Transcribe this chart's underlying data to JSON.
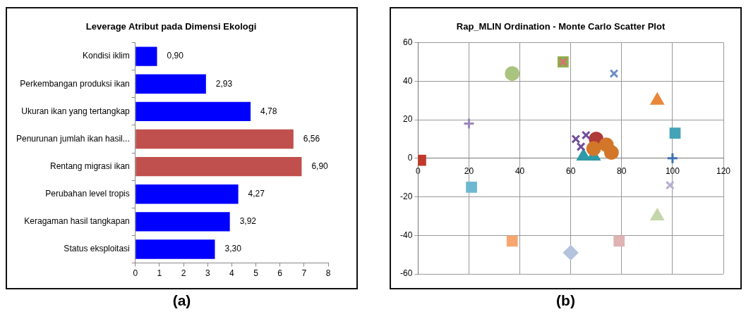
{
  "chart_data": [
    {
      "type": "bar",
      "title": "Leverage Atribut pada Dimensi Ekologi",
      "orientation": "horizontal",
      "categories": [
        "Kondisi iklim",
        "Perkembangan produksi ikan",
        "Ukuran ikan yang tertangkap",
        "Penurunan jumlah ikan hasil...",
        "Rentang migrasi ikan",
        "Perubahan level tropis",
        "Keragaman hasil tangkapan",
        "Status eksploitasi"
      ],
      "values": [
        0.9,
        2.93,
        4.78,
        6.56,
        6.9,
        4.27,
        3.92,
        3.3
      ],
      "colors": [
        "#0000ff",
        "#0000ff",
        "#0000ff",
        "#c0504d",
        "#c0504d",
        "#0000ff",
        "#0000ff",
        "#0000ff"
      ],
      "value_labels": [
        "0,90",
        "2,93",
        "4,78",
        "6,56",
        "6,90",
        "4,27",
        "3,92",
        "3,30"
      ],
      "xlim": [
        0,
        8
      ],
      "xticks": [
        0,
        1,
        2,
        3,
        4,
        5,
        6,
        7,
        8
      ],
      "grid": false,
      "legend": false,
      "annotations": [
        "(a)"
      ]
    },
    {
      "type": "scatter",
      "title": "Rap_MLIN Ordination - Monte Carlo Scatter Plot",
      "series": [
        {
          "color": "#c0392b",
          "marker": "square",
          "x": [
            1
          ],
          "values": [
            -1
          ]
        },
        {
          "color": "#9b87bd",
          "marker": "plus",
          "x": [
            20
          ],
          "values": [
            18
          ]
        },
        {
          "color": "#6fb8d1",
          "marker": "square",
          "x": [
            21
          ],
          "values": [
            -15
          ]
        },
        {
          "color": "#a9c47f",
          "marker": "circle",
          "x": [
            37
          ],
          "values": [
            44
          ]
        },
        {
          "color": "#f7a66f",
          "marker": "square",
          "x": [
            37
          ],
          "values": [
            -43
          ]
        },
        {
          "color": "#8cb04a",
          "marker": "square",
          "x": [
            57
          ],
          "values": [
            50
          ]
        },
        {
          "color": "#d47373",
          "marker": "cross",
          "x": [
            57
          ],
          "values": [
            50
          ]
        },
        {
          "color": "#b4c3de",
          "marker": "diamond",
          "x": [
            60
          ],
          "values": [
            -49
          ]
        },
        {
          "color": "#6f8fc8",
          "marker": "cross",
          "x": [
            77
          ],
          "values": [
            44
          ]
        },
        {
          "color": "#e8873a",
          "marker": "triangle",
          "x": [
            94
          ],
          "values": [
            30
          ]
        },
        {
          "color": "#45a3b8",
          "marker": "square",
          "x": [
            101
          ],
          "values": [
            13
          ]
        },
        {
          "color": "#3d6fb5",
          "marker": "plus",
          "x": [
            100
          ],
          "values": [
            0
          ]
        },
        {
          "color": "#b8add2",
          "marker": "cross",
          "x": [
            99
          ],
          "values": [
            -14
          ]
        },
        {
          "color": "#c6d6ac",
          "marker": "triangle",
          "x": [
            94
          ],
          "values": [
            -30
          ]
        },
        {
          "color": "#dfb3b3",
          "marker": "square",
          "x": [
            79
          ],
          "values": [
            -43
          ]
        },
        {
          "color": "#2f9aa8",
          "marker": "triangle",
          "x": [
            65,
            69
          ],
          "values": [
            1,
            1
          ]
        },
        {
          "color": "#b03a3a",
          "marker": "circle",
          "x": [
            70
          ],
          "values": [
            10
          ]
        },
        {
          "color": "#6f4e9a",
          "marker": "cross",
          "x": [
            62,
            66,
            64
          ],
          "values": [
            10,
            12,
            6
          ]
        },
        {
          "color": "#d2772a",
          "marker": "circle",
          "x": [
            69,
            74,
            76
          ],
          "values": [
            5,
            7,
            3
          ]
        }
      ],
      "xlim": [
        0,
        120
      ],
      "xticks": [
        0,
        20,
        40,
        60,
        80,
        100,
        120
      ],
      "ylim": [
        -60,
        60
      ],
      "yticks": [
        -60,
        -40,
        -20,
        0,
        20,
        40,
        60
      ],
      "grid": true,
      "legend": false,
      "annotations": [
        "(b)"
      ]
    }
  ]
}
